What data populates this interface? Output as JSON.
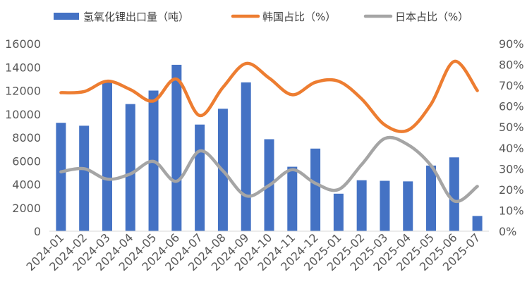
{
  "chart_data": {
    "type": "bar",
    "categories": [
      "2024-01",
      "2024-02",
      "2024-03",
      "2024-04",
      "2024-05",
      "2024-06",
      "2024-07",
      "2024-08",
      "2024-09",
      "2024-10",
      "2024-11",
      "2024-12",
      "2025-01",
      "2025-02",
      "2025-03",
      "2025-04",
      "2025-05",
      "2025-06",
      "2025-07"
    ],
    "series": [
      {
        "name": "氢氧化锂出口量（吨）",
        "type": "bar",
        "axis": "left",
        "color": "#4472C4",
        "values": [
          9250,
          9000,
          12700,
          10850,
          12000,
          14200,
          9100,
          10450,
          12700,
          7850,
          5500,
          7050,
          3200,
          4350,
          4300,
          4250,
          5600,
          6300,
          1300
        ]
      },
      {
        "name": "韩国占比（%）",
        "type": "line",
        "axis": "right",
        "color": "#ED7D31",
        "values": [
          66.5,
          67,
          72,
          68,
          62.5,
          73,
          55.5,
          69,
          80.5,
          73.5,
          65.5,
          71.5,
          72,
          63.5,
          51,
          48.5,
          61,
          81.5,
          67.5
        ]
      },
      {
        "name": "日本占比（%）",
        "type": "line",
        "axis": "right",
        "color": "#A5A5A5",
        "values": [
          28.5,
          30,
          25,
          27.5,
          33.5,
          24,
          38.5,
          29,
          17,
          22,
          29.5,
          23,
          20,
          32,
          44.5,
          41.5,
          31.5,
          14.5,
          21.5
        ]
      }
    ],
    "y_left": {
      "min": 0,
      "max": 16000,
      "step": 2000,
      "tick_labels": [
        "0",
        "2000",
        "4000",
        "6000",
        "8000",
        "10000",
        "12000",
        "14000",
        "16000"
      ]
    },
    "y_right": {
      "min": 0,
      "max": 90,
      "step": 10,
      "tick_labels": [
        "0%",
        "10%",
        "20%",
        "30%",
        "40%",
        "50%",
        "60%",
        "70%",
        "80%",
        "90%"
      ]
    },
    "legend_position": "top",
    "grid": false
  }
}
